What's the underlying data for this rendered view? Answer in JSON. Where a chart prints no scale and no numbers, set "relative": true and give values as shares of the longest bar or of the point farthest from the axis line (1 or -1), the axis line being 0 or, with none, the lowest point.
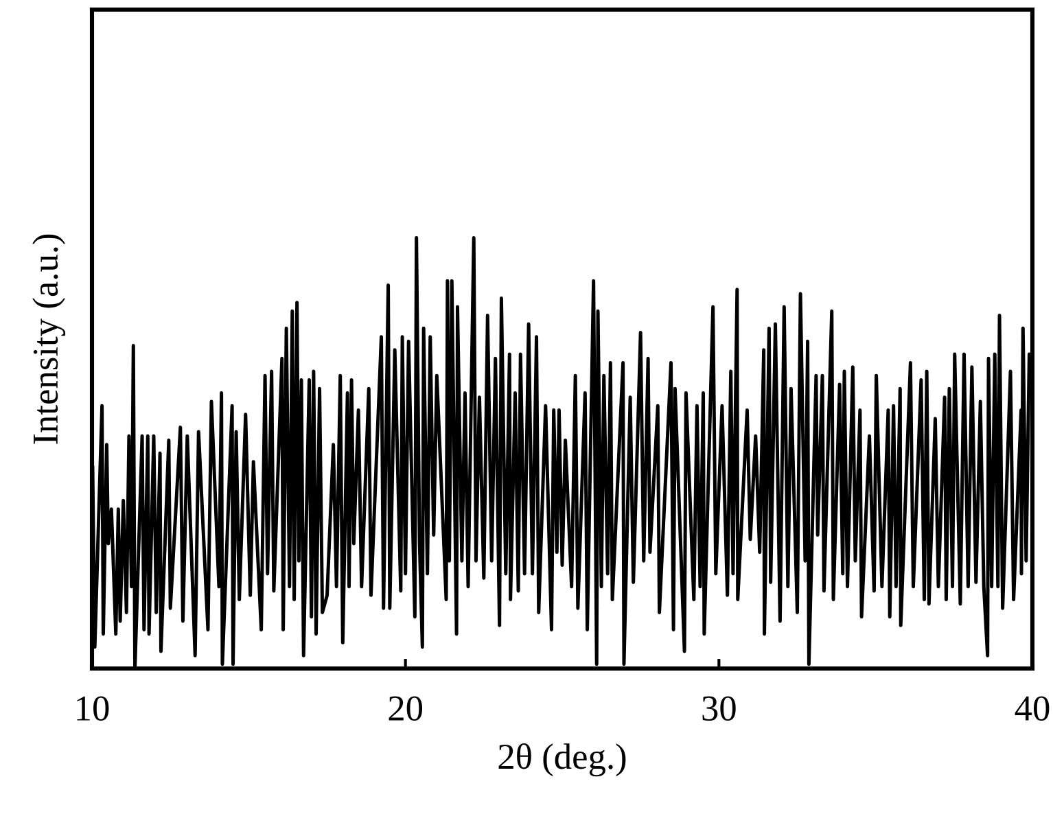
{
  "chart_data": {
    "type": "line",
    "xlabel": "2θ (deg.)",
    "ylabel": "Intensity (a.u.)",
    "relative": true,
    "xlim": [
      10,
      40
    ],
    "xticks": [
      10,
      20,
      30,
      40
    ],
    "x": [
      10.02,
      10.09,
      10.32,
      10.36,
      10.47,
      10.52,
      10.62,
      10.76,
      10.84,
      10.9,
      11.0,
      11.1,
      11.18,
      11.26,
      11.32,
      11.37,
      11.6,
      11.66,
      11.78,
      11.82,
      11.97,
      12.05,
      12.17,
      12.2,
      12.45,
      12.5,
      12.82,
      12.9,
      13.04,
      13.29,
      13.4,
      13.7,
      13.81,
      14.05,
      14.13,
      14.16,
      14.47,
      14.5,
      14.6,
      14.7,
      14.9,
      15.05,
      15.15,
      15.4,
      15.52,
      15.6,
      15.73,
      15.8,
      16.06,
      16.1,
      16.2,
      16.3,
      16.39,
      16.45,
      16.54,
      16.6,
      16.68,
      16.75,
      16.93,
      17.0,
      17.07,
      17.15,
      17.26,
      17.35,
      17.5,
      17.7,
      17.8,
      17.92,
      18.0,
      18.15,
      18.2,
      18.28,
      18.35,
      18.5,
      18.6,
      18.83,
      18.9,
      19.23,
      19.3,
      19.45,
      19.5,
      19.66,
      19.85,
      19.9,
      20.0,
      20.1,
      20.3,
      20.35,
      20.45,
      20.54,
      20.58,
      20.7,
      20.79,
      20.9,
      21.0,
      21.3,
      21.34,
      21.4,
      21.48,
      21.63,
      21.66,
      21.8,
      21.9,
      22.0,
      22.18,
      22.25,
      22.36,
      22.5,
      22.62,
      22.75,
      22.87,
      23.0,
      23.06,
      23.2,
      23.32,
      23.35,
      23.5,
      23.6,
      23.67,
      23.8,
      23.93,
      24.05,
      24.18,
      24.25,
      24.47,
      24.66,
      24.73,
      24.83,
      24.9,
      25.0,
      25.1,
      25.3,
      25.42,
      25.5,
      25.73,
      25.8,
      26.0,
      26.1,
      26.14,
      26.25,
      26.33,
      26.45,
      26.54,
      26.6,
      26.94,
      26.97,
      27.17,
      27.27,
      27.5,
      27.6,
      27.74,
      27.8,
      28.05,
      28.1,
      28.47,
      28.55,
      28.6,
      28.9,
      28.95,
      29.2,
      29.3,
      29.4,
      29.5,
      29.53,
      29.81,
      29.9,
      30.1,
      30.27,
      30.38,
      30.45,
      30.58,
      30.6,
      30.9,
      31.0,
      31.17,
      31.3,
      31.43,
      31.45,
      31.6,
      31.65,
      31.8,
      31.95,
      32.08,
      32.2,
      32.3,
      32.5,
      32.6,
      32.75,
      32.83,
      32.87,
      33.1,
      33.15,
      33.3,
      33.35,
      33.6,
      33.65,
      33.85,
      33.95,
      34.0,
      34.1,
      34.27,
      34.35,
      34.5,
      34.55,
      34.8,
      34.95,
      35.02,
      35.2,
      35.4,
      35.45,
      35.57,
      35.65,
      35.78,
      35.8,
      36.11,
      36.2,
      36.45,
      36.55,
      36.63,
      36.7,
      36.9,
      37.0,
      37.2,
      37.25,
      37.35,
      37.45,
      37.52,
      37.7,
      37.82,
      37.95,
      38.07,
      38.2,
      38.34,
      38.45,
      38.57,
      38.6,
      38.7,
      38.8,
      38.9,
      38.95,
      39.05,
      39.3,
      39.4,
      39.64,
      39.65,
      39.7,
      39.8,
      39.9,
      39.98
    ],
    "series": [
      {
        "color": "#000000",
        "values": [
          0.47,
          0.05,
          0.61,
          0.08,
          0.52,
          0.29,
          0.37,
          0.08,
          0.37,
          0.11,
          0.39,
          0.13,
          0.54,
          0.19,
          0.75,
          0,
          0.54,
          0.09,
          0.54,
          0.08,
          0.54,
          0.13,
          0.5,
          0.04,
          0.53,
          0.14,
          0.56,
          0.11,
          0.54,
          0.03,
          0.55,
          0.09,
          0.62,
          0.19,
          0.64,
          0.01,
          0.61,
          0.01,
          0.55,
          0.16,
          0.59,
          0.17,
          0.48,
          0.09,
          0.68,
          0.22,
          0.69,
          0.18,
          0.72,
          0.09,
          0.79,
          0.19,
          0.83,
          0.16,
          0.85,
          0.25,
          0.67,
          0.03,
          0.67,
          0.12,
          0.69,
          0.08,
          0.65,
          0.13,
          0.17,
          0.52,
          0.19,
          0.68,
          0.06,
          0.64,
          0.19,
          0.67,
          0.29,
          0.6,
          0.19,
          0.65,
          0.17,
          0.77,
          0.14,
          0.89,
          0.14,
          0.74,
          0.18,
          0.77,
          0.22,
          0.76,
          0.12,
          1,
          0.29,
          0.05,
          0.79,
          0.22,
          0.77,
          0.31,
          0.68,
          0.16,
          0.9,
          0.25,
          0.9,
          0.08,
          0.84,
          0.25,
          0.64,
          0.19,
          1,
          0.25,
          0.63,
          0.21,
          0.82,
          0.25,
          0.72,
          0.1,
          0.86,
          0.22,
          0.73,
          0.16,
          0.64,
          0.18,
          0.73,
          0.22,
          0.8,
          0.22,
          0.77,
          0.13,
          0.61,
          0.09,
          0.6,
          0.27,
          0.6,
          0.24,
          0.53,
          0.19,
          0.68,
          0.14,
          0.64,
          0.09,
          0.9,
          0.01,
          0.83,
          0.19,
          0.68,
          0.22,
          0.71,
          0.16,
          0.71,
          0.01,
          0.63,
          0.2,
          0.78,
          0.25,
          0.72,
          0.27,
          0.61,
          0.13,
          0.71,
          0.09,
          0.65,
          0.04,
          0.64,
          0.16,
          0.61,
          0.19,
          0.64,
          0.08,
          0.84,
          0.22,
          0.61,
          0.17,
          0.69,
          0.22,
          0.88,
          0.16,
          0.6,
          0.3,
          0.54,
          0.27,
          0.74,
          0.08,
          0.79,
          0.2,
          0.8,
          0.11,
          0.84,
          0.19,
          0.65,
          0.13,
          0.87,
          0.25,
          0.76,
          0.01,
          0.68,
          0.31,
          0.68,
          0.18,
          0.83,
          0.16,
          0.66,
          0.22,
          0.69,
          0.19,
          0.7,
          0.25,
          0.6,
          0.12,
          0.54,
          0.18,
          0.68,
          0.19,
          0.6,
          0.12,
          0.61,
          0.19,
          0.65,
          0.1,
          0.71,
          0.19,
          0.67,
          0.16,
          0.69,
          0.15,
          0.58,
          0.19,
          0.63,
          0.16,
          0.65,
          0.19,
          0.73,
          0.15,
          0.73,
          0.19,
          0.7,
          0.2,
          0.62,
          0.19,
          0.03,
          0.72,
          0.19,
          0.73,
          0.19,
          0.82,
          0.14,
          0.69,
          0.16,
          0.6,
          0.22,
          0.79,
          0.25,
          0.73,
          0.64
        ]
      }
    ]
  }
}
